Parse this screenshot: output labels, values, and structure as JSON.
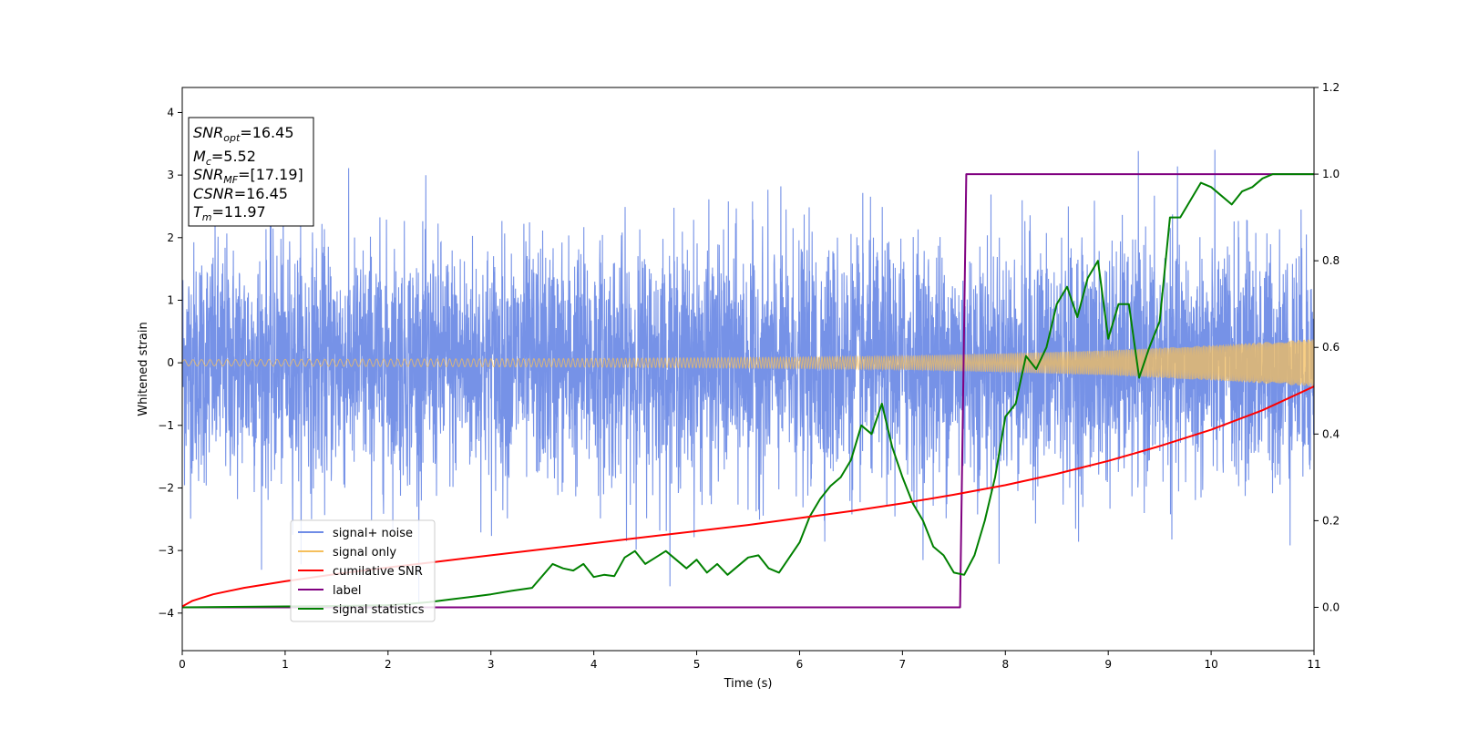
{
  "chart_data": {
    "type": "line",
    "title": "",
    "xlabel": "Time (s)",
    "ylabel": "Whitened strain",
    "xlim": [
      0,
      11
    ],
    "ylim": [
      -4.6,
      4.4
    ],
    "y2lim": [
      -0.1,
      1.2
    ],
    "xticks": [
      "0",
      "1",
      "2",
      "3",
      "4",
      "5",
      "6",
      "7",
      "8",
      "9",
      "10",
      "11"
    ],
    "yticks": [
      "4",
      "3",
      "2",
      "1",
      "0",
      "−1",
      "−2",
      "−3",
      "−4"
    ],
    "y2ticks": [
      "1.2",
      "1.0",
      "0.8",
      "0.6",
      "0.4",
      "0.2",
      "0.0"
    ],
    "grid": false,
    "legend_placement": "lower-left",
    "legend": [
      {
        "label": "signal+ noise",
        "color": "#6f8ce6"
      },
      {
        "label": "signal only",
        "color": "#f5bf5c"
      },
      {
        "label": "cumilative SNR",
        "color": "#ff0000"
      },
      {
        "label": "label",
        "color": "#800080"
      },
      {
        "label": "signal statistics",
        "color": "#008000"
      }
    ],
    "annotation": {
      "snr_opt": {
        "sym": "SNR",
        "sub": "opt",
        "value": "=16.45"
      },
      "mc": {
        "sym": "M",
        "sub": "c",
        "value": "=5.52"
      },
      "snr_mf": {
        "sym": "SNR",
        "sub": "MF",
        "value": "=[17.19]"
      },
      "csnr": {
        "sym": "CSNR",
        "value": "=16.45"
      },
      "tm": {
        "sym": "T",
        "sub": "m",
        "value": "=11.97"
      }
    },
    "series": [
      {
        "name": "signal+ noise",
        "axis": "left",
        "description_values": "noise band, approx. ±2 typical with spikes to about ±4",
        "amplitude_envelope": 2.0
      },
      {
        "name": "signal only",
        "axis": "left",
        "envelope": [
          [
            0,
            0.05
          ],
          [
            2,
            0.06
          ],
          [
            4,
            0.07
          ],
          [
            6,
            0.09
          ],
          [
            7,
            0.11
          ],
          [
            8,
            0.15
          ],
          [
            9,
            0.2
          ],
          [
            10,
            0.28
          ],
          [
            11,
            0.38
          ]
        ]
      },
      {
        "name": "cumilative SNR",
        "axis": "right",
        "x": [
          0,
          0.1,
          0.3,
          0.6,
          1,
          1.5,
          2,
          2.5,
          3,
          3.5,
          4,
          4.5,
          5,
          5.5,
          6,
          6.5,
          7,
          7.5,
          8,
          8.5,
          9,
          9.5,
          10,
          10.5,
          11
        ],
        "y": [
          0.002,
          0.015,
          0.03,
          0.045,
          0.06,
          0.077,
          0.092,
          0.106,
          0.12,
          0.134,
          0.148,
          0.162,
          0.176,
          0.19,
          0.206,
          0.222,
          0.24,
          0.26,
          0.282,
          0.308,
          0.338,
          0.372,
          0.41,
          0.455,
          0.51
        ]
      },
      {
        "name": "label",
        "axis": "right",
        "x": [
          0,
          7.56,
          7.62,
          11
        ],
        "y": [
          0.0,
          0.0,
          1.0,
          1.0
        ]
      },
      {
        "name": "signal statistics",
        "axis": "right",
        "x": [
          0,
          1,
          1.5,
          2,
          2.2,
          2.4,
          2.6,
          2.8,
          3.0,
          3.2,
          3.4,
          3.6,
          3.7,
          3.8,
          3.9,
          4.0,
          4.1,
          4.2,
          4.3,
          4.4,
          4.5,
          4.6,
          4.7,
          4.8,
          4.9,
          5.0,
          5.1,
          5.2,
          5.3,
          5.4,
          5.5,
          5.6,
          5.7,
          5.8,
          5.9,
          6.0,
          6.1,
          6.2,
          6.3,
          6.4,
          6.5,
          6.6,
          6.7,
          6.8,
          6.9,
          7.0,
          7.1,
          7.2,
          7.3,
          7.4,
          7.5,
          7.6,
          7.7,
          7.8,
          7.9,
          8.0,
          8.1,
          8.2,
          8.3,
          8.4,
          8.5,
          8.6,
          8.7,
          8.8,
          8.9,
          9.0,
          9.1,
          9.2,
          9.3,
          9.4,
          9.5,
          9.6,
          9.7,
          9.8,
          9.9,
          10.0,
          10.1,
          10.2,
          10.3,
          10.4,
          10.5,
          10.6,
          10.7,
          10.8,
          10.9,
          11.0
        ],
        "y": [
          0.0,
          0.002,
          0.003,
          0.005,
          0.008,
          0.012,
          0.018,
          0.024,
          0.03,
          0.038,
          0.045,
          0.1,
          0.09,
          0.085,
          0.1,
          0.07,
          0.075,
          0.072,
          0.115,
          0.13,
          0.1,
          0.115,
          0.13,
          0.11,
          0.09,
          0.11,
          0.08,
          0.1,
          0.075,
          0.095,
          0.115,
          0.12,
          0.09,
          0.08,
          0.115,
          0.15,
          0.21,
          0.25,
          0.28,
          0.3,
          0.34,
          0.42,
          0.4,
          0.47,
          0.37,
          0.3,
          0.24,
          0.2,
          0.14,
          0.12,
          0.08,
          0.075,
          0.12,
          0.2,
          0.3,
          0.44,
          0.47,
          0.58,
          0.55,
          0.6,
          0.7,
          0.74,
          0.67,
          0.76,
          0.8,
          0.62,
          0.7,
          0.7,
          0.53,
          0.6,
          0.66,
          0.9,
          0.9,
          0.94,
          0.98,
          0.97,
          0.95,
          0.93,
          0.96,
          0.97,
          0.99,
          1.0,
          1.0,
          1.0,
          1.0,
          1.0
        ]
      }
    ]
  }
}
